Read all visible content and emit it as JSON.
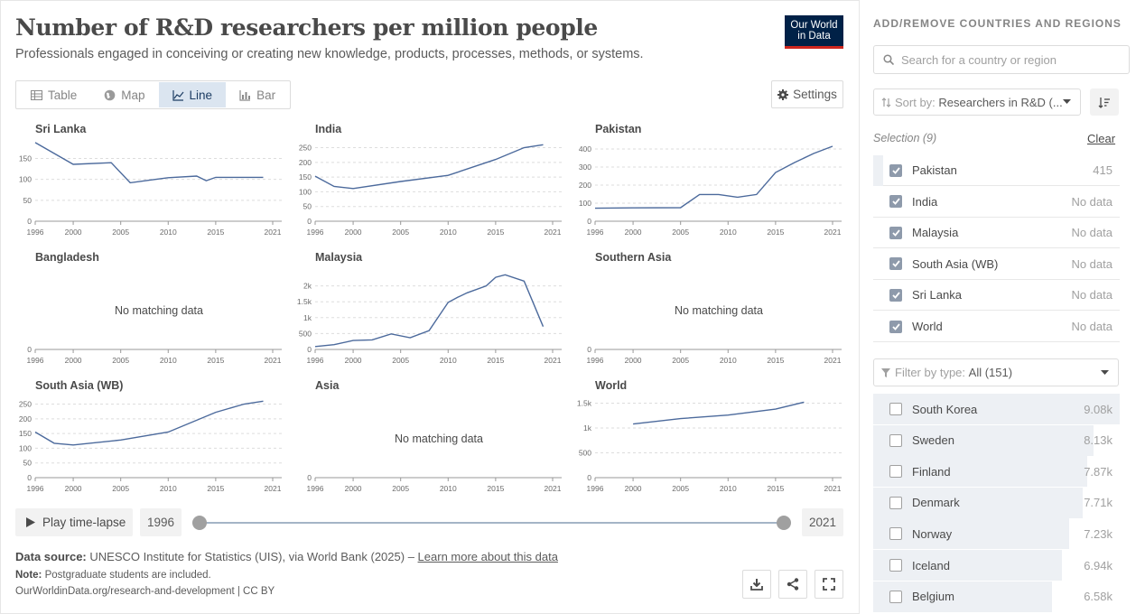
{
  "header": {
    "title": "Number of R&D researchers per million people",
    "subtitle": "Professionals engaged in conceiving or creating new knowledge, products, processes, methods, or systems.",
    "logo_line1": "Our World",
    "logo_line2": "in Data"
  },
  "tabs": [
    {
      "label": "Table",
      "icon": "table-icon",
      "active": false
    },
    {
      "label": "Map",
      "icon": "globe-icon",
      "active": false
    },
    {
      "label": "Line",
      "icon": "line-chart-icon",
      "active": true
    },
    {
      "label": "Bar",
      "icon": "bar-chart-icon",
      "active": false
    }
  ],
  "settings_label": "Settings",
  "no_data_text": "No matching data",
  "timeline": {
    "play_label": "Play time-lapse",
    "start_year": "1996",
    "end_year": "2021"
  },
  "footer": {
    "source_label": "Data source:",
    "source_text": "UNESCO Institute for Statistics (UIS), via World Bank (2025) –",
    "source_link": "Learn more about this data",
    "note_label": "Note:",
    "note_text": "Postgraduate students are included.",
    "url": "OurWorldinData.org/research-and-development | CC BY"
  },
  "sidebar": {
    "heading": "ADD/REMOVE COUNTRIES AND REGIONS",
    "search_placeholder": "Search for a country or region",
    "sort_label": "Sort by:",
    "sort_value": "Researchers in R&D (...",
    "selection_label": "Selection (9)",
    "clear_label": "Clear",
    "selection": [
      {
        "name": "Pakistan",
        "value": "415",
        "bar": 0.04
      },
      {
        "name": "India",
        "value": "No data",
        "bar": 0
      },
      {
        "name": "Malaysia",
        "value": "No data",
        "bar": 0
      },
      {
        "name": "South Asia (WB)",
        "value": "No data",
        "bar": 0
      },
      {
        "name": "Sri Lanka",
        "value": "No data",
        "bar": 0
      },
      {
        "name": "World",
        "value": "No data",
        "bar": 0
      }
    ],
    "filter_label": "Filter by type:",
    "filter_value": "All (151)",
    "all_items": [
      {
        "name": "South Korea",
        "value": "9.08k",
        "bar": 1.0
      },
      {
        "name": "Sweden",
        "value": "8.13k",
        "bar": 0.895
      },
      {
        "name": "Finland",
        "value": "7.87k",
        "bar": 0.867
      },
      {
        "name": "Denmark",
        "value": "7.71k",
        "bar": 0.849
      },
      {
        "name": "Norway",
        "value": "7.23k",
        "bar": 0.796
      },
      {
        "name": "Iceland",
        "value": "6.94k",
        "bar": 0.764
      },
      {
        "name": "Belgium",
        "value": "6.58k",
        "bar": 0.725
      }
    ]
  },
  "colors": {
    "line": "#4c6a9c",
    "grid": "#dddddd",
    "active_tab": "#dbe5f0",
    "logo_bg": "#002147",
    "logo_accent": "#ce261e"
  },
  "chart_data": {
    "type": "line",
    "x_ticks": [
      1996,
      2000,
      2005,
      2010,
      2015,
      2021
    ],
    "xlim": [
      1996,
      2021
    ],
    "panels": [
      {
        "name": "Sri Lanka",
        "ylim": [
          0,
          190
        ],
        "yticks": [
          0,
          50,
          100,
          150
        ],
        "ytick_labels": [
          "0",
          "50",
          "100",
          "150"
        ],
        "x": [
          1996,
          2000,
          2004,
          2006,
          2008,
          2010,
          2013,
          2014,
          2015,
          2017,
          2020
        ],
        "y": [
          188,
          136,
          140,
          92,
          98,
          104,
          108,
          97,
          105,
          105,
          105
        ]
      },
      {
        "name": "India",
        "ylim": [
          0,
          270
        ],
        "yticks": [
          0,
          50,
          100,
          150,
          200,
          250
        ],
        "ytick_labels": [
          "0",
          "50",
          "100",
          "150",
          "200",
          "250"
        ],
        "x": [
          1996,
          1998,
          2000,
          2005,
          2010,
          2015,
          2018,
          2020
        ],
        "y": [
          153,
          118,
          111,
          135,
          156,
          210,
          250,
          260
        ]
      },
      {
        "name": "Pakistan",
        "ylim": [
          0,
          440
        ],
        "yticks": [
          0,
          100,
          200,
          300,
          400
        ],
        "ytick_labels": [
          "0",
          "100",
          "200",
          "300",
          "400"
        ],
        "x": [
          1996,
          2000,
          2005,
          2007,
          2009,
          2011,
          2013,
          2015,
          2017,
          2019,
          2021
        ],
        "y": [
          72,
          74,
          75,
          148,
          148,
          133,
          148,
          270,
          325,
          375,
          415
        ]
      },
      {
        "name": "Bangladesh",
        "no_data": true,
        "ylim": [
          0,
          1
        ],
        "yticks": [
          0
        ],
        "ytick_labels": [
          "0"
        ],
        "x": [],
        "y": []
      },
      {
        "name": "Malaysia",
        "ylim": [
          0,
          2500
        ],
        "yticks": [
          0,
          500,
          1000,
          1500,
          2000
        ],
        "ytick_labels": [
          "0",
          "500",
          "1k",
          "1.5k",
          "2k"
        ],
        "x": [
          1996,
          1998,
          2000,
          2002,
          2004,
          2006,
          2008,
          2010,
          2011,
          2012,
          2014,
          2015,
          2016,
          2018,
          2020
        ],
        "y": [
          90,
          150,
          280,
          300,
          490,
          370,
          590,
          1480,
          1640,
          1780,
          2000,
          2270,
          2350,
          2150,
          720
        ]
      },
      {
        "name": "Southern Asia",
        "no_data": true,
        "ylim": [
          0,
          1
        ],
        "yticks": [
          0
        ],
        "ytick_labels": [
          "0"
        ],
        "x": [],
        "y": []
      },
      {
        "name": "South Asia (WB)",
        "ylim": [
          0,
          270
        ],
        "yticks": [
          0,
          50,
          100,
          150,
          200,
          250
        ],
        "ytick_labels": [
          "0",
          "50",
          "100",
          "150",
          "200",
          "250"
        ],
        "x": [
          1996,
          1998,
          2000,
          2005,
          2010,
          2015,
          2018,
          2020
        ],
        "y": [
          155,
          117,
          111,
          128,
          155,
          222,
          250,
          260
        ]
      },
      {
        "name": "Asia",
        "no_data": true,
        "ylim": [
          0,
          1
        ],
        "yticks": [
          0
        ],
        "ytick_labels": [
          "0"
        ],
        "x": [],
        "y": []
      },
      {
        "name": "World",
        "ylim": [
          0,
          1600
        ],
        "yticks": [
          0,
          500,
          1000,
          1500
        ],
        "ytick_labels": [
          "0",
          "500",
          "1k",
          "1.5k"
        ],
        "x": [
          2000,
          2005,
          2010,
          2015,
          2018
        ],
        "y": [
          1080,
          1190,
          1260,
          1380,
          1520
        ]
      }
    ]
  }
}
